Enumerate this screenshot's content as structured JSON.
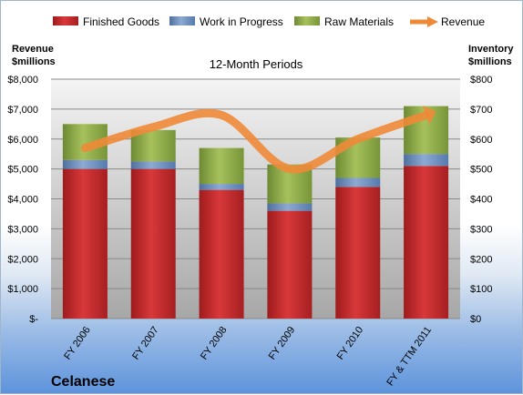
{
  "chart_data": {
    "type": "bar",
    "title": "12-Month Periods",
    "company": "Celanese",
    "categories": [
      "FY 2006",
      "FY 2007",
      "FY 2008",
      "FY 2009",
      "FY 2010",
      "FY & TTM 2011"
    ],
    "series": [
      {
        "name": "Finished Goods",
        "color": "#c0292b",
        "values": [
          5000,
          5000,
          4300,
          3600,
          4400,
          5100
        ],
        "axis": "left",
        "kind": "stacked-bar"
      },
      {
        "name": "Work in Progress",
        "color": "#6f8fbd",
        "values": [
          300,
          250,
          200,
          250,
          300,
          400
        ],
        "axis": "left",
        "kind": "stacked-bar"
      },
      {
        "name": "Raw Materials",
        "color": "#8fae48",
        "values": [
          1200,
          1050,
          1200,
          1300,
          1350,
          1600
        ],
        "axis": "left",
        "kind": "stacked-bar"
      },
      {
        "name": "Revenue",
        "color": "#ee8a37",
        "values": [
          5700,
          6400,
          6800,
          5000,
          6000,
          6800
        ],
        "axis": "left",
        "kind": "line"
      }
    ],
    "left_axis": {
      "label_line1": "Revenue",
      "label_line2": "$millions",
      "range": [
        0,
        8000
      ],
      "ticks": [
        "$-",
        "$1,000",
        "$2,000",
        "$3,000",
        "$4,000",
        "$5,000",
        "$6,000",
        "$7,000",
        "$8,000"
      ]
    },
    "right_axis": {
      "label_line1": "Inventory",
      "label_line2": "$millions",
      "range": [
        0,
        800
      ],
      "ticks": [
        "$0",
        "$100",
        "$200",
        "$300",
        "$400",
        "$500",
        "$600",
        "$700",
        "$800"
      ]
    },
    "legend_position": "top",
    "grid": true
  }
}
